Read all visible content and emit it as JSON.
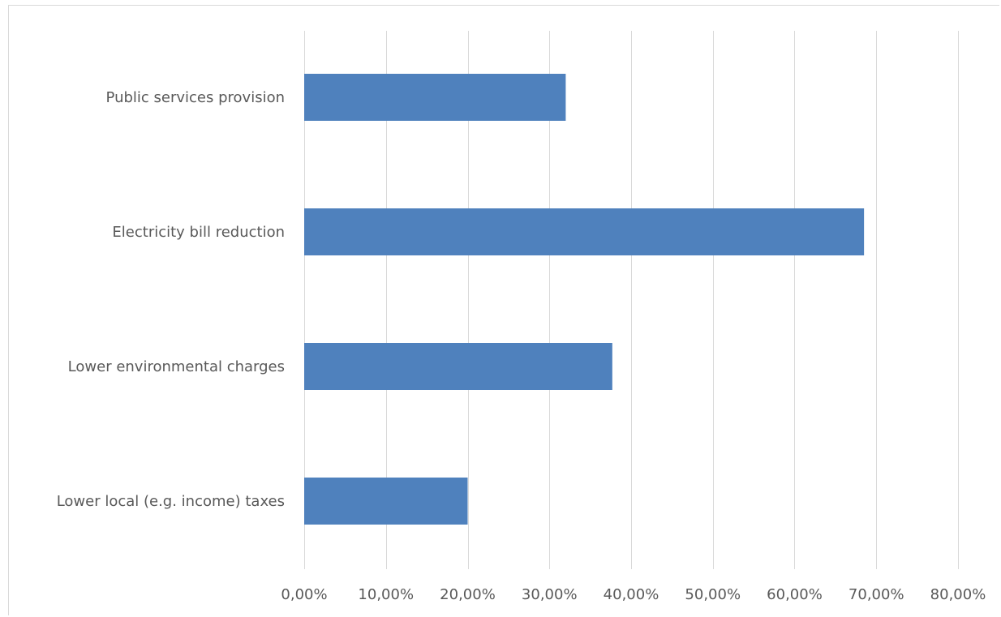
{
  "chart_data": {
    "type": "bar",
    "orientation": "horizontal",
    "title": "",
    "xlabel": "",
    "ylabel": "",
    "categories": [
      "Public services provision",
      "Electricity bill reduction",
      "Lower environmental charges",
      "Lower local (e.g. income) taxes"
    ],
    "values": [
      0.32,
      0.685,
      0.377,
      0.2
    ],
    "xlim": [
      0,
      0.8
    ],
    "xticks": [
      0,
      0.1,
      0.2,
      0.3,
      0.4,
      0.5,
      0.6,
      0.7,
      0.8
    ],
    "tick_labels": [
      "0,00%",
      "10,00%",
      "20,00%",
      "30,00%",
      "40,00%",
      "50,00%",
      "60,00%",
      "70,00%",
      "80,00%"
    ],
    "grid": "vertical",
    "legend": "none",
    "colors": {
      "bar": "#4F81BD",
      "grid": "#d9d9d9",
      "text": "#595959"
    }
  }
}
